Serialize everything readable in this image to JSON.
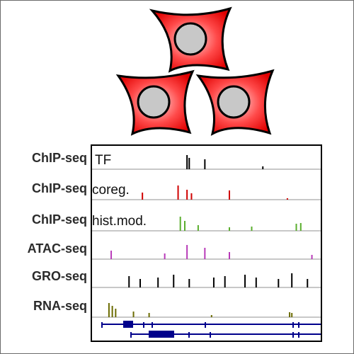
{
  "tracks": [
    {
      "assay": "ChIP-seq",
      "inner_label": "TF",
      "color": "#000000",
      "peaks": [
        [
          0.41,
          1.0
        ],
        [
          0.42,
          0.8
        ],
        [
          0.49,
          0.7
        ],
        [
          0.75,
          0.2
        ]
      ]
    },
    {
      "assay": "ChIP-seq",
      "inner_label": "coreg.",
      "color": "#d00000",
      "peaks": [
        [
          0.21,
          0.5
        ],
        [
          0.37,
          1.0
        ],
        [
          0.41,
          0.7
        ],
        [
          0.43,
          0.45
        ],
        [
          0.6,
          0.65
        ],
        [
          0.86,
          0.1
        ]
      ]
    },
    {
      "assay": "ChIP-seq",
      "inner_label": "hist.mod.",
      "color": "#5aae2d",
      "peaks": [
        [
          0.38,
          1.0
        ],
        [
          0.4,
          0.7
        ],
        [
          0.46,
          0.4
        ],
        [
          0.6,
          0.25
        ],
        [
          0.7,
          0.3
        ],
        [
          0.9,
          0.5
        ],
        [
          0.92,
          0.55
        ]
      ]
    },
    {
      "assay": "ATAC-seq",
      "inner_label": "",
      "color": "#b83ab8",
      "peaks": [
        [
          0.07,
          0.6
        ],
        [
          0.31,
          0.4
        ],
        [
          0.41,
          1.0
        ],
        [
          0.49,
          0.8
        ],
        [
          0.6,
          0.5
        ],
        [
          0.97,
          0.3
        ]
      ]
    },
    {
      "assay": "GRO-seq",
      "inner_label": "",
      "color": "#000000",
      "peaks": [
        [
          0.15,
          0.8
        ],
        [
          0.2,
          0.6
        ],
        [
          0.28,
          0.7
        ],
        [
          0.35,
          0.9
        ],
        [
          0.42,
          0.6
        ],
        [
          0.53,
          0.7
        ],
        [
          0.58,
          0.8
        ],
        [
          0.67,
          0.9
        ],
        [
          0.72,
          0.7
        ],
        [
          0.82,
          0.6
        ],
        [
          0.88,
          1.0
        ],
        [
          0.95,
          0.6
        ]
      ]
    },
    {
      "assay": "RNA-seq",
      "inner_label": "",
      "color": "#6b6b00",
      "peaks": [
        [
          0.06,
          1.0
        ],
        [
          0.075,
          0.8
        ],
        [
          0.09,
          0.6
        ],
        [
          0.17,
          0.4
        ],
        [
          0.24,
          0.3
        ],
        [
          0.52,
          0.15
        ],
        [
          0.87,
          0.35
        ],
        [
          0.88,
          0.3
        ]
      ]
    }
  ],
  "gene_color": "#00008b",
  "cell_fill": "#ff3333",
  "nucleus_fill": "#c8c8c8"
}
